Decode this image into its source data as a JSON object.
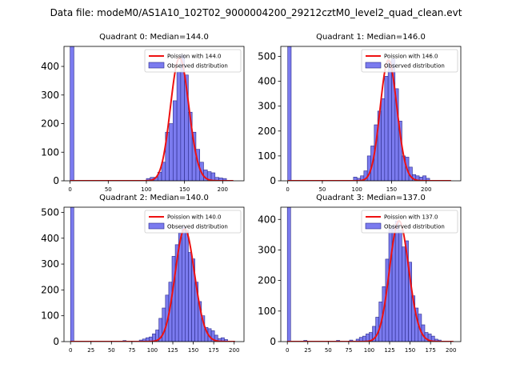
{
  "figure_title": "Data file: modeM0/AS1A10_102T02_9000004200_29212cztM0_level2_quad_clean.evt",
  "colors": {
    "bar_fill": "#7b7bef",
    "bar_edge": "#2a2a8a",
    "poisson_line": "#ee1111",
    "axis": "#000000"
  },
  "chart_data": [
    {
      "type": "bar",
      "title": "Quadrant 0: Median=144.0",
      "xlim": [
        -8,
        228
      ],
      "ylim": [
        0,
        470
      ],
      "xticks": [
        0,
        50,
        100,
        150,
        200
      ],
      "yticks": [
        0,
        100,
        200,
        300,
        400
      ],
      "bin_width": 5,
      "bars": [
        {
          "x": 0,
          "h": 470
        },
        {
          "x": 100,
          "h": 8
        },
        {
          "x": 105,
          "h": 12
        },
        {
          "x": 110,
          "h": 12
        },
        {
          "x": 115,
          "h": 30
        },
        {
          "x": 120,
          "h": 65
        },
        {
          "x": 125,
          "h": 170
        },
        {
          "x": 130,
          "h": 200
        },
        {
          "x": 135,
          "h": 280
        },
        {
          "x": 140,
          "h": 380
        },
        {
          "x": 145,
          "h": 440
        },
        {
          "x": 150,
          "h": 370
        },
        {
          "x": 155,
          "h": 240
        },
        {
          "x": 160,
          "h": 170
        },
        {
          "x": 165,
          "h": 110
        },
        {
          "x": 170,
          "h": 65
        },
        {
          "x": 175,
          "h": 38
        },
        {
          "x": 180,
          "h": 32
        },
        {
          "x": 185,
          "h": 28
        },
        {
          "x": 190,
          "h": 12
        },
        {
          "x": 195,
          "h": 10
        },
        {
          "x": 200,
          "h": 8
        }
      ],
      "poisson_mean": 144.0,
      "poisson_peak": 430,
      "poisson_xrange": [
        0,
        214
      ],
      "legend": {
        "line_label": "Poission with 144.0",
        "bar_label": "Observed distribution",
        "placement": "top-right"
      }
    },
    {
      "type": "bar",
      "title": "Quadrant 1: Median=146.0",
      "xlim": [
        -10,
        250
      ],
      "ylim": [
        0,
        540
      ],
      "xticks": [
        0,
        50,
        100,
        150,
        200
      ],
      "yticks": [
        0,
        100,
        200,
        300,
        400,
        500
      ],
      "bin_width": 5,
      "bars": [
        {
          "x": 0,
          "h": 540
        },
        {
          "x": 95,
          "h": 15
        },
        {
          "x": 100,
          "h": 10
        },
        {
          "x": 105,
          "h": 20
        },
        {
          "x": 110,
          "h": 40
        },
        {
          "x": 115,
          "h": 100
        },
        {
          "x": 120,
          "h": 140
        },
        {
          "x": 125,
          "h": 225
        },
        {
          "x": 130,
          "h": 280
        },
        {
          "x": 135,
          "h": 330
        },
        {
          "x": 140,
          "h": 420
        },
        {
          "x": 145,
          "h": 480
        },
        {
          "x": 150,
          "h": 490
        },
        {
          "x": 155,
          "h": 370
        },
        {
          "x": 160,
          "h": 240
        },
        {
          "x": 165,
          "h": 100
        },
        {
          "x": 170,
          "h": 95
        },
        {
          "x": 175,
          "h": 55
        },
        {
          "x": 180,
          "h": 25
        },
        {
          "x": 185,
          "h": 20
        },
        {
          "x": 190,
          "h": 15
        },
        {
          "x": 195,
          "h": 20
        },
        {
          "x": 200,
          "h": 10
        }
      ],
      "poisson_mean": 146.0,
      "poisson_peak": 485,
      "poisson_xrange": [
        0,
        236
      ],
      "legend": {
        "line_label": "Poission with 146.0",
        "bar_label": "Observed distribution",
        "placement": "top-right"
      }
    },
    {
      "type": "bar",
      "title": "Quadrant 2: Median=140.0",
      "xlim": [
        -8,
        212
      ],
      "ylim": [
        0,
        520
      ],
      "xticks": [
        0,
        25,
        50,
        75,
        100,
        125,
        150,
        175,
        200
      ],
      "yticks": [
        0,
        100,
        200,
        300,
        400,
        500
      ],
      "bin_width": 4,
      "bars": [
        {
          "x": 0,
          "h": 520
        },
        {
          "x": 64,
          "h": 4
        },
        {
          "x": 84,
          "h": 6
        },
        {
          "x": 88,
          "h": 10
        },
        {
          "x": 92,
          "h": 15
        },
        {
          "x": 96,
          "h": 18
        },
        {
          "x": 100,
          "h": 30
        },
        {
          "x": 104,
          "h": 45
        },
        {
          "x": 108,
          "h": 90
        },
        {
          "x": 112,
          "h": 130
        },
        {
          "x": 116,
          "h": 180
        },
        {
          "x": 120,
          "h": 230
        },
        {
          "x": 124,
          "h": 330
        },
        {
          "x": 128,
          "h": 375
        },
        {
          "x": 132,
          "h": 420
        },
        {
          "x": 136,
          "h": 445
        },
        {
          "x": 140,
          "h": 430
        },
        {
          "x": 144,
          "h": 345
        },
        {
          "x": 148,
          "h": 320
        },
        {
          "x": 152,
          "h": 230
        },
        {
          "x": 156,
          "h": 155
        },
        {
          "x": 160,
          "h": 100
        },
        {
          "x": 164,
          "h": 55
        },
        {
          "x": 168,
          "h": 50
        },
        {
          "x": 172,
          "h": 42
        },
        {
          "x": 176,
          "h": 25
        },
        {
          "x": 180,
          "h": 12
        },
        {
          "x": 184,
          "h": 15
        },
        {
          "x": 188,
          "h": 8
        }
      ],
      "poisson_mean": 140.0,
      "poisson_peak": 435,
      "poisson_xrange": [
        0,
        201
      ],
      "legend": {
        "line_label": "Poission with 140.0",
        "bar_label": "Observed distribution",
        "placement": "top-right"
      }
    },
    {
      "type": "bar",
      "title": "Quadrant 3: Median=137.0",
      "xlim": [
        -8,
        212
      ],
      "ylim": [
        0,
        440
      ],
      "xticks": [
        0,
        25,
        50,
        75,
        100,
        125,
        150,
        175,
        200
      ],
      "yticks": [
        0,
        100,
        200,
        300,
        400
      ],
      "bin_width": 4,
      "bars": [
        {
          "x": 0,
          "h": 440
        },
        {
          "x": 20,
          "h": 4
        },
        {
          "x": 60,
          "h": 4
        },
        {
          "x": 76,
          "h": 5
        },
        {
          "x": 84,
          "h": 8
        },
        {
          "x": 88,
          "h": 14
        },
        {
          "x": 92,
          "h": 18
        },
        {
          "x": 96,
          "h": 25
        },
        {
          "x": 100,
          "h": 30
        },
        {
          "x": 104,
          "h": 50
        },
        {
          "x": 108,
          "h": 80
        },
        {
          "x": 112,
          "h": 130
        },
        {
          "x": 116,
          "h": 180
        },
        {
          "x": 120,
          "h": 270
        },
        {
          "x": 124,
          "h": 370
        },
        {
          "x": 128,
          "h": 380
        },
        {
          "x": 132,
          "h": 395
        },
        {
          "x": 136,
          "h": 365
        },
        {
          "x": 140,
          "h": 310
        },
        {
          "x": 144,
          "h": 330
        },
        {
          "x": 148,
          "h": 260
        },
        {
          "x": 152,
          "h": 150
        },
        {
          "x": 156,
          "h": 110
        },
        {
          "x": 160,
          "h": 90
        },
        {
          "x": 164,
          "h": 55
        },
        {
          "x": 168,
          "h": 30
        },
        {
          "x": 172,
          "h": 25
        },
        {
          "x": 176,
          "h": 18
        },
        {
          "x": 180,
          "h": 8
        },
        {
          "x": 184,
          "h": 5
        }
      ],
      "poisson_mean": 137.0,
      "poisson_peak": 395,
      "poisson_xrange": [
        0,
        203
      ],
      "legend": {
        "line_label": "Poission with 137.0",
        "bar_label": "Observed distribution",
        "placement": "top-right"
      }
    }
  ]
}
